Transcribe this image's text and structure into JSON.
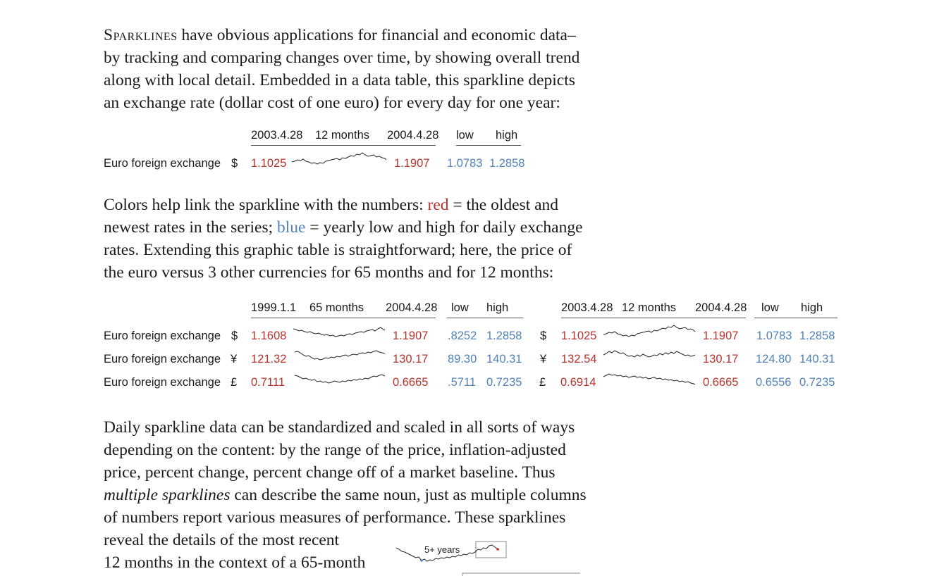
{
  "para1": {
    "lead": "Sparklines",
    "l1": " have obvious applications for financial and economic data–",
    "l2": "by tracking and comparing changes over time, by showing overall trend",
    "l3": "along with local detail. Embedded in a data table, this sparkline depicts",
    "l4": "an exchange rate (dollar cost of one euro) for every day for one year:"
  },
  "table1": {
    "headers": {
      "start": "2003.4.28",
      "period": "12 months",
      "end": "2004.4.28",
      "low": "low",
      "high": "high"
    },
    "row": {
      "label": "Euro foreign exchange",
      "symbol": "$",
      "start": "1.1025",
      "end": "1.1907",
      "low": "1.0783",
      "high": "1.2858"
    }
  },
  "para2": {
    "l1a": "Colors help link the sparkline with the numbers: ",
    "l1red": "red",
    "l1b": " = the oldest and",
    "l2a": "newest rates in the series; ",
    "l2blue": "blue",
    "l2b": " = yearly low and high for daily exchange",
    "l3": "rates. Extending this graphic table is straightforward; here, the price of",
    "l4": "the euro versus 3 other currencies for 65 months and for 12 months:"
  },
  "table2": {
    "left_headers": {
      "start": "1999.1.1",
      "period": "65 months",
      "end": "2004.4.28",
      "low": "low",
      "high": "high"
    },
    "right_headers": {
      "start": "2003.4.28",
      "period": "12 months",
      "end": "2004.4.28",
      "low": "low",
      "high": "high"
    },
    "rows": [
      {
        "label": "Euro foreign exchange",
        "symbol": "$",
        "l_start": "1.1608",
        "l_end": "1.1907",
        "l_low": ".8252",
        "l_high": "1.2858",
        "r_symbol": "$",
        "r_start": "1.1025",
        "r_end": "1.1907",
        "r_low": "1.0783",
        "r_high": "1.2858"
      },
      {
        "label": "Euro foreign exchange",
        "symbol": "¥",
        "l_start": "121.32",
        "l_end": "130.17",
        "l_low": "89.30",
        "l_high": "140.31",
        "r_symbol": "¥",
        "r_start": "132.54",
        "r_end": "130.17",
        "r_low": "124.80",
        "r_high": "140.31"
      },
      {
        "label": "Euro foreign exchange",
        "symbol": "£",
        "l_start": "0.7111",
        "l_end": "0.6665",
        "l_low": ".5711",
        "l_high": "0.7235",
        "r_symbol": "£",
        "r_start": "0.6914",
        "r_end": "0.6665",
        "r_low": "0.6556",
        "r_high": "0.7235"
      }
    ]
  },
  "para3": {
    "l1": "Daily sparkline data can be standardized and scaled in all sorts of ways",
    "l2": "depending on the content: by the range of the price, inflation-adjusted",
    "l3": "price, percent change, percent change off of a market baseline. Thus",
    "l4em": "multiple sparklines",
    "l4b": " can describe the same noun, just as multiple columns",
    "l5": "of numbers report various measures of performance. These sparklines",
    "l6": "reveal the details of the most recent",
    "l7": "12 months in the context of a 65-month"
  },
  "inset": {
    "label": "5+ years"
  }
}
